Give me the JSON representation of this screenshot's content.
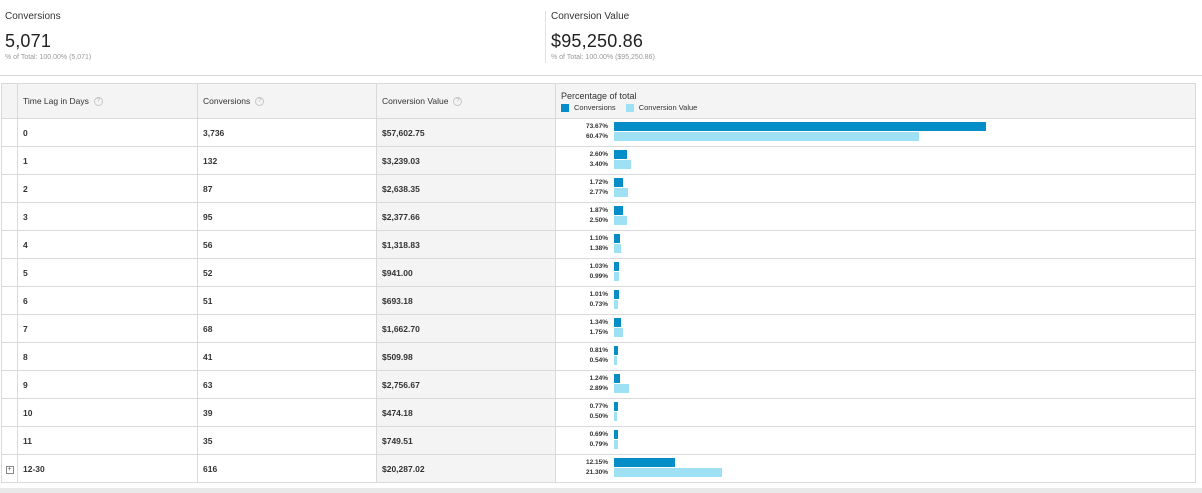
{
  "summary": {
    "conversions": {
      "label": "Conversions",
      "value": "5,071",
      "sub": "% of Total: 100.00% (5,071)"
    },
    "conversion_value": {
      "label": "Conversion Value",
      "value": "$95,250.86",
      "sub": "% of Total: 100.00% ($95,250.86)"
    }
  },
  "table": {
    "headers": {
      "lag": "Time Lag in Days",
      "conversions": "Conversions",
      "value": "Conversion Value",
      "percent": "Percentage of total",
      "legend_conversions": "Conversions",
      "legend_value": "Conversion Value"
    },
    "colors": {
      "conversions": "#058dc7",
      "value": "#9ee0f4"
    },
    "help_icon": "?",
    "rows": [
      {
        "expander": "",
        "lag": "0",
        "conversions": "3,736",
        "value": "$57,602.75",
        "pct_conv": "73.67%",
        "pct_val": "60.47%"
      },
      {
        "expander": "",
        "lag": "1",
        "conversions": "132",
        "value": "$3,239.03",
        "pct_conv": "2.60%",
        "pct_val": "3.40%"
      },
      {
        "expander": "",
        "lag": "2",
        "conversions": "87",
        "value": "$2,638.35",
        "pct_conv": "1.72%",
        "pct_val": "2.77%"
      },
      {
        "expander": "",
        "lag": "3",
        "conversions": "95",
        "value": "$2,377.66",
        "pct_conv": "1.87%",
        "pct_val": "2.50%"
      },
      {
        "expander": "",
        "lag": "4",
        "conversions": "56",
        "value": "$1,318.83",
        "pct_conv": "1.10%",
        "pct_val": "1.38%"
      },
      {
        "expander": "",
        "lag": "5",
        "conversions": "52",
        "value": "$941.00",
        "pct_conv": "1.03%",
        "pct_val": "0.99%"
      },
      {
        "expander": "",
        "lag": "6",
        "conversions": "51",
        "value": "$693.18",
        "pct_conv": "1.01%",
        "pct_val": "0.73%"
      },
      {
        "expander": "",
        "lag": "7",
        "conversions": "68",
        "value": "$1,662.70",
        "pct_conv": "1.34%",
        "pct_val": "1.75%"
      },
      {
        "expander": "",
        "lag": "8",
        "conversions": "41",
        "value": "$509.98",
        "pct_conv": "0.81%",
        "pct_val": "0.54%"
      },
      {
        "expander": "",
        "lag": "9",
        "conversions": "63",
        "value": "$2,756.67",
        "pct_conv": "1.24%",
        "pct_val": "2.89%"
      },
      {
        "expander": "",
        "lag": "10",
        "conversions": "39",
        "value": "$474.18",
        "pct_conv": "0.77%",
        "pct_val": "0.50%"
      },
      {
        "expander": "",
        "lag": "11",
        "conversions": "35",
        "value": "$749.51",
        "pct_conv": "0.69%",
        "pct_val": "0.79%"
      },
      {
        "expander": "+",
        "lag": "12-30",
        "conversions": "616",
        "value": "$20,287.02",
        "pct_conv": "12.15%",
        "pct_val": "21.30%"
      }
    ]
  }
}
